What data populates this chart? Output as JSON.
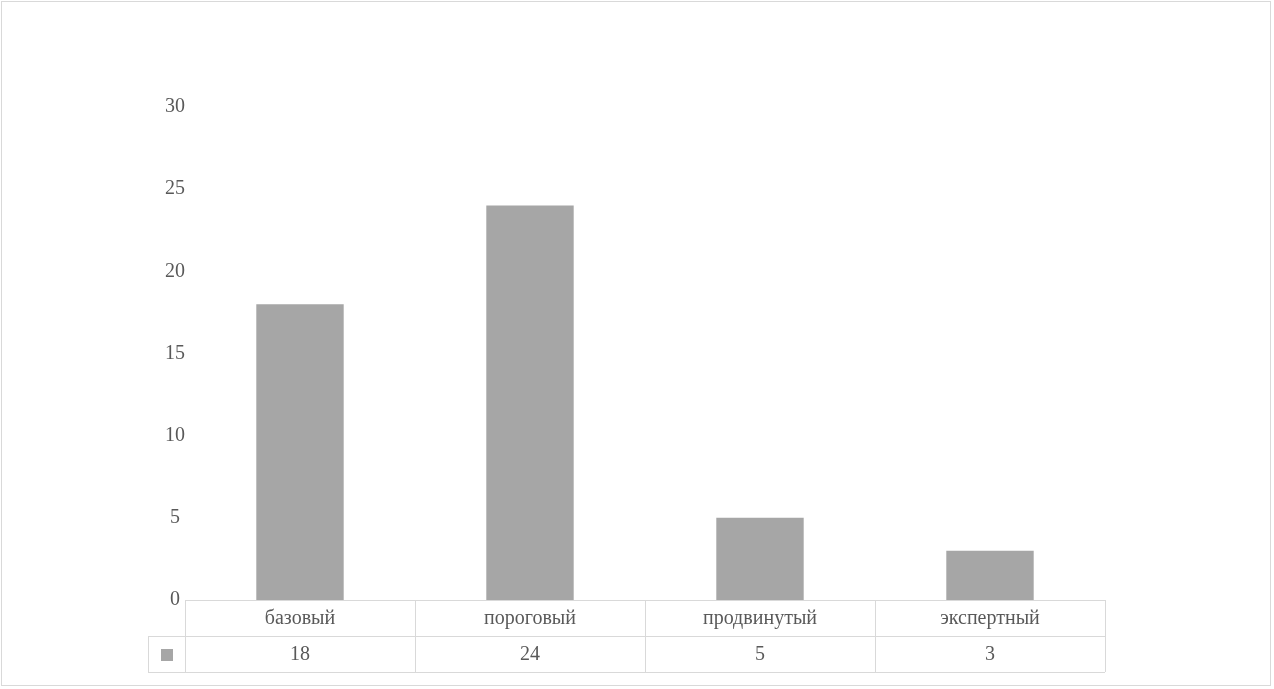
{
  "chart_data": {
    "type": "bar",
    "categories": [
      "базовый",
      "пороговый",
      "продвинутый",
      "экспертный"
    ],
    "series": [
      {
        "color": "#a6a6a6",
        "values": [
          18,
          24,
          5,
          3
        ]
      }
    ],
    "ylim": [
      0,
      30
    ],
    "yticks": [
      0,
      5,
      10,
      15,
      20,
      25,
      30
    ],
    "grid": false,
    "legend": false,
    "data_labels": true
  }
}
